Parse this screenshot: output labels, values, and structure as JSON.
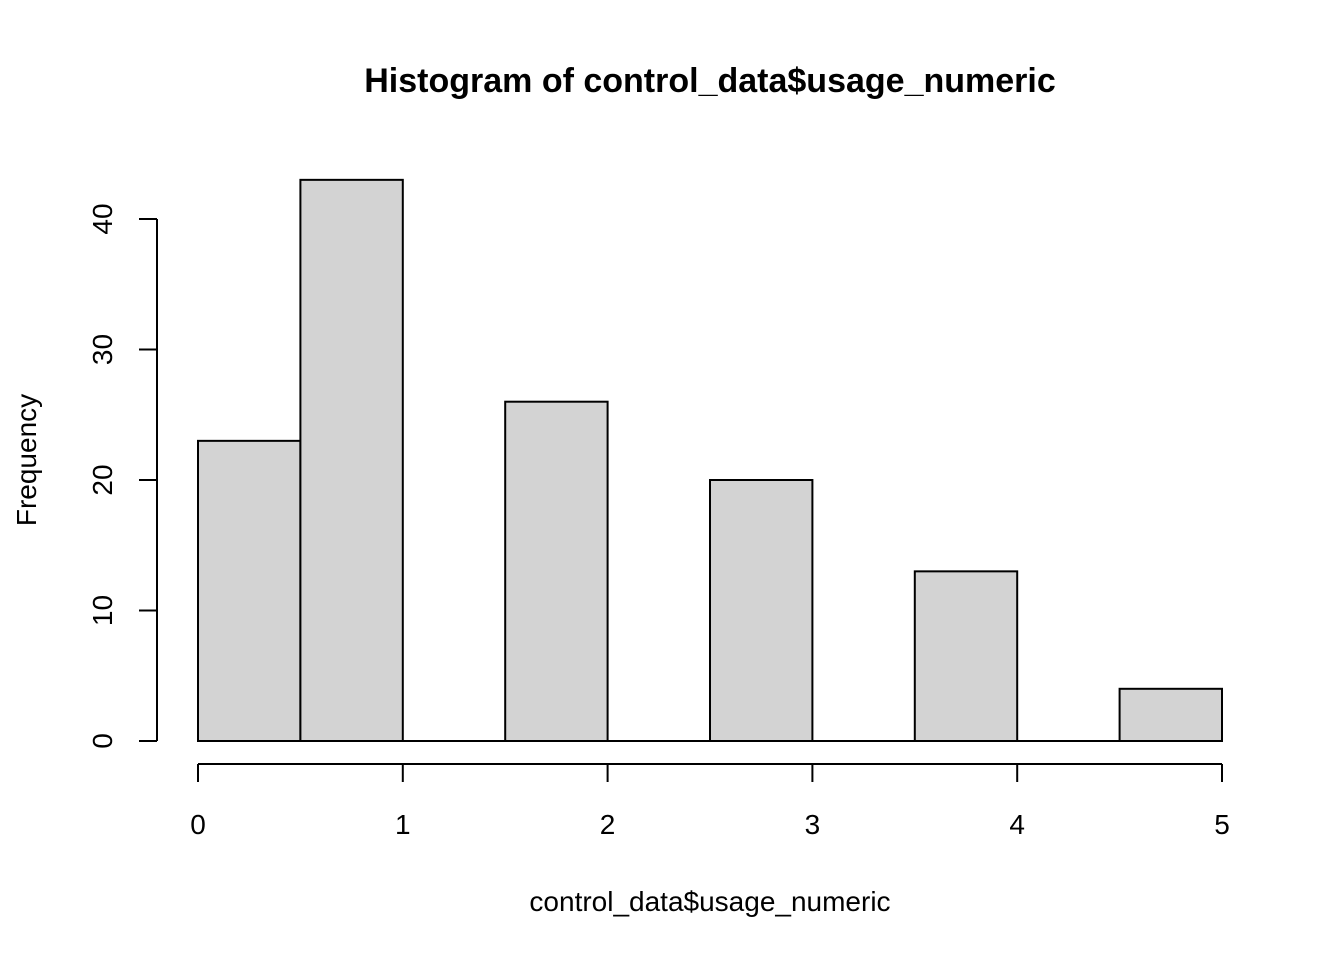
{
  "chart_data": {
    "type": "bar",
    "title": "Histogram of control_data$usage_numeric",
    "xlabel": "control_data$usage_numeric",
    "ylabel": "Frequency",
    "bins": [
      {
        "x0": 0.0,
        "x1": 0.5,
        "count": 23
      },
      {
        "x0": 0.5,
        "x1": 1.0,
        "count": 43
      },
      {
        "x0": 1.0,
        "x1": 1.5,
        "count": 0
      },
      {
        "x0": 1.5,
        "x1": 2.0,
        "count": 26
      },
      {
        "x0": 2.0,
        "x1": 2.5,
        "count": 0
      },
      {
        "x0": 2.5,
        "x1": 3.0,
        "count": 20
      },
      {
        "x0": 3.0,
        "x1": 3.5,
        "count": 0
      },
      {
        "x0": 3.5,
        "x1": 4.0,
        "count": 13
      },
      {
        "x0": 4.0,
        "x1": 4.5,
        "count": 0
      },
      {
        "x0": 4.5,
        "x1": 5.0,
        "count": 4
      }
    ],
    "xlim": [
      0,
      5
    ],
    "ylim": [
      0,
      43
    ],
    "x_ticks": [
      0,
      1,
      2,
      3,
      4,
      5
    ],
    "y_ticks": [
      0,
      10,
      20,
      30,
      40
    ],
    "grid": false,
    "bar_color": "#d3d3d3",
    "bar_stroke": "#000000"
  }
}
